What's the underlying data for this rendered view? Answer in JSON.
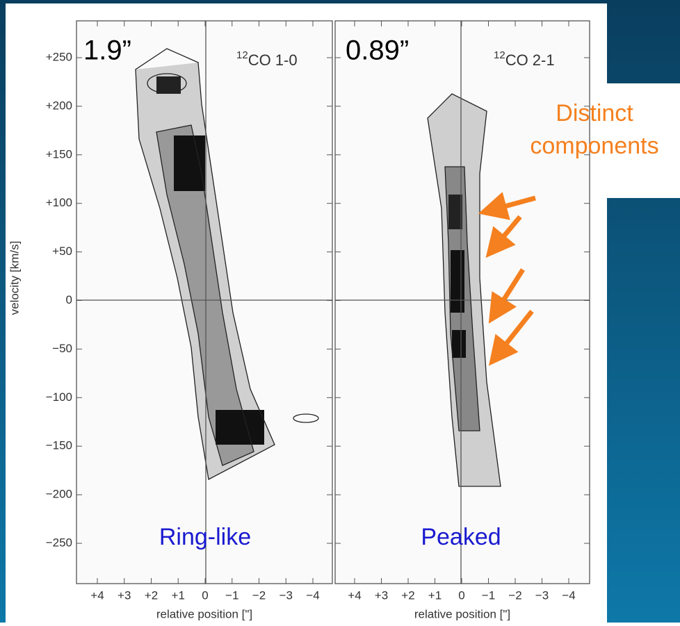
{
  "slide": {
    "callout": {
      "lines": [
        "Distinct",
        "components"
      ]
    },
    "panels": [
      {
        "resolution": "1.9”",
        "line_label": {
          "isotope": "12",
          "text": "CO 1-0"
        },
        "profile": "Ring-like"
      },
      {
        "resolution": "0.89”",
        "line_label": {
          "isotope": "12",
          "text": "CO 2-1"
        },
        "profile": "Peaked"
      }
    ],
    "y_axis": {
      "label": "velocity [km/s]",
      "ticks": [
        "+250",
        "+200",
        "+150",
        "+100",
        "+50",
        "0",
        "−50",
        "−100",
        "−150",
        "−200",
        "−250"
      ]
    },
    "x_axis": {
      "label": "relative position [\"]",
      "ticks": [
        "+4",
        "+3",
        "+2",
        "+1",
        "0",
        "−1",
        "−2",
        "−3",
        "−4"
      ]
    }
  }
}
